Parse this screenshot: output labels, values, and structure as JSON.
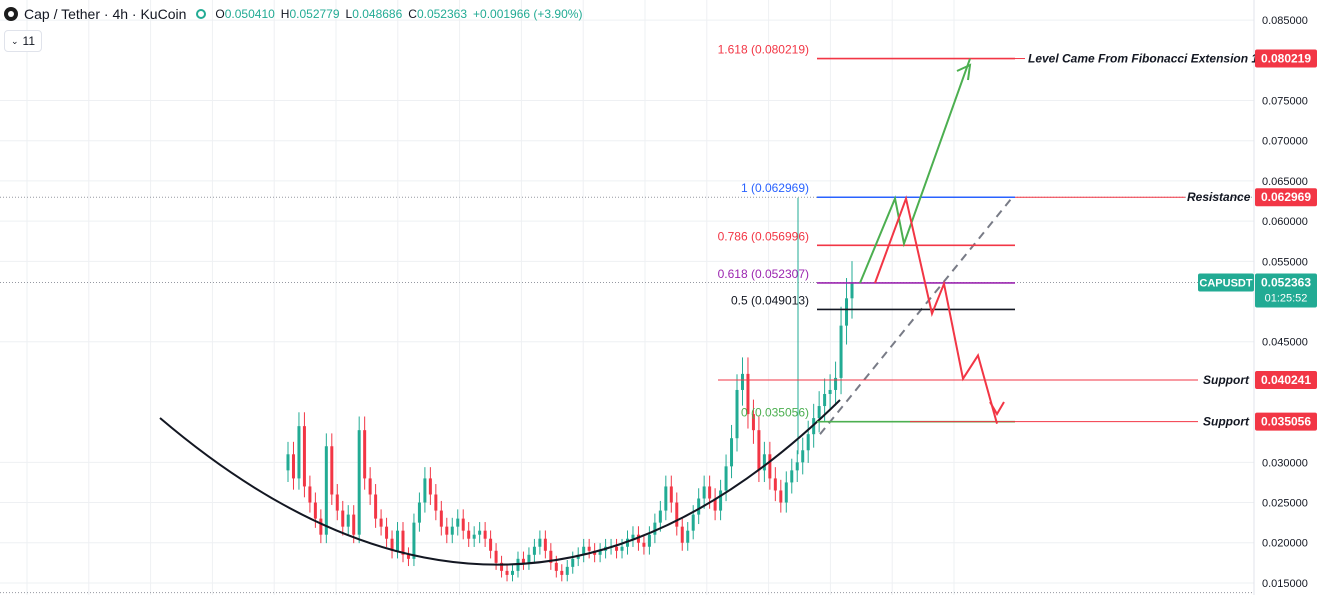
{
  "header": {
    "title": "Cap / Tether · 4h · KuCoin",
    "ohlc": [
      {
        "k": "O",
        "v": "0.050410"
      },
      {
        "k": "H",
        "v": "0.052779"
      },
      {
        "k": "L",
        "v": "0.048686"
      },
      {
        "k": "C",
        "v": "0.052363"
      }
    ],
    "change": "+0.001966 (+3.90%)",
    "indicator_count": "11",
    "icons": {
      "symbol": "cap-logo-icon",
      "collapse": "chevron-down-icon"
    }
  },
  "colors": {
    "up": "#22ab94",
    "down": "#f23645",
    "fib_1": "#2962ff",
    "fib_0786": "#f23645",
    "fib_0618": "#9c27b0",
    "fib_05": "#131722",
    "fib_0": "#4caf50",
    "ext": "#f23645",
    "arrow_green": "#4caf50",
    "arrow_red": "#f23645",
    "price_tag": "#22ab94"
  },
  "chart_data": {
    "type": "candlestick",
    "y_scale": "linear",
    "ylim": [
      0.0135,
      0.0875
    ],
    "grid": true,
    "y_ticks": [
      "0.085000",
      "0.075000",
      "0.070000",
      "0.065000",
      "0.060000",
      "0.055000",
      "0.045000",
      "0.030000",
      "0.025000",
      "0.020000",
      "0.015000"
    ],
    "closes_approx": [
      0.031,
      0.028,
      0.0345,
      0.027,
      0.025,
      0.023,
      0.021,
      0.032,
      0.026,
      0.024,
      0.022,
      0.0235,
      0.021,
      0.034,
      0.028,
      0.026,
      0.023,
      0.022,
      0.0205,
      0.019,
      0.0215,
      0.0185,
      0.018,
      0.0225,
      0.025,
      0.028,
      0.026,
      0.024,
      0.022,
      0.021,
      0.022,
      0.023,
      0.0215,
      0.0205,
      0.021,
      0.0215,
      0.0205,
      0.019,
      0.0175,
      0.0165,
      0.016,
      0.0165,
      0.018,
      0.0175,
      0.0185,
      0.0195,
      0.0205,
      0.019,
      0.0175,
      0.0165,
      0.016,
      0.017,
      0.018,
      0.0185,
      0.0195,
      0.019,
      0.0185,
      0.019,
      0.0195,
      0.0195,
      0.019,
      0.0195,
      0.0205,
      0.021,
      0.02,
      0.0195,
      0.021,
      0.0225,
      0.024,
      0.027,
      0.025,
      0.022,
      0.02,
      0.0215,
      0.0235,
      0.0255,
      0.027,
      0.0255,
      0.024,
      0.0265,
      0.0295,
      0.033,
      0.039,
      0.041,
      0.036,
      0.034,
      0.029,
      0.031,
      0.028,
      0.0265,
      0.025,
      0.0275,
      0.029,
      0.03,
      0.0315,
      0.0335,
      0.0355,
      0.037,
      0.0385,
      0.039,
      0.0405,
      0.047,
      0.0504,
      0.0524
    ],
    "fib_levels": [
      {
        "label": "1.618 (0.080219)",
        "price": 0.080219,
        "color_key": "ext"
      },
      {
        "label": "1 (0.062969)",
        "price": 0.062969,
        "color_key": "fib_1"
      },
      {
        "label": "0.786 (0.056996)",
        "price": 0.056996,
        "color_key": "fib_0786"
      },
      {
        "label": "0.618 (0.052307)",
        "price": 0.052307,
        "color_key": "fib_0618"
      },
      {
        "label": "0.5 (0.049013)",
        "price": 0.049013,
        "color_key": "fib_05"
      },
      {
        "label": "0 (0.035056)",
        "price": 0.035056,
        "color_key": "fib_0"
      }
    ],
    "annotations": [
      {
        "text": "Level Came From Fibonacci Extension 1",
        "price": 0.080219,
        "tag": "0.080219",
        "color": "#f23645"
      },
      {
        "text": "Resistance",
        "price": 0.062969,
        "tag": "0.062969",
        "color": "#f23645"
      },
      {
        "text": "Support",
        "price": 0.040241,
        "tag": "0.040241",
        "color": "#f23645"
      },
      {
        "text": "Support",
        "price": 0.035056,
        "tag": "0.035056",
        "color": "#f23645"
      }
    ],
    "current_price": {
      "symbol": "CAPUSDT",
      "price": "0.052363",
      "countdown": "01:25:52",
      "value": 0.052363
    },
    "pattern": "rounded bottom (cup)",
    "green_path_prices": [
      0.052307,
      0.0628,
      0.0572,
      0.0802
    ],
    "red_path_prices": [
      0.052307,
      0.0628,
      0.0485,
      0.0522,
      0.0404,
      0.0433,
      0.0348
    ]
  }
}
